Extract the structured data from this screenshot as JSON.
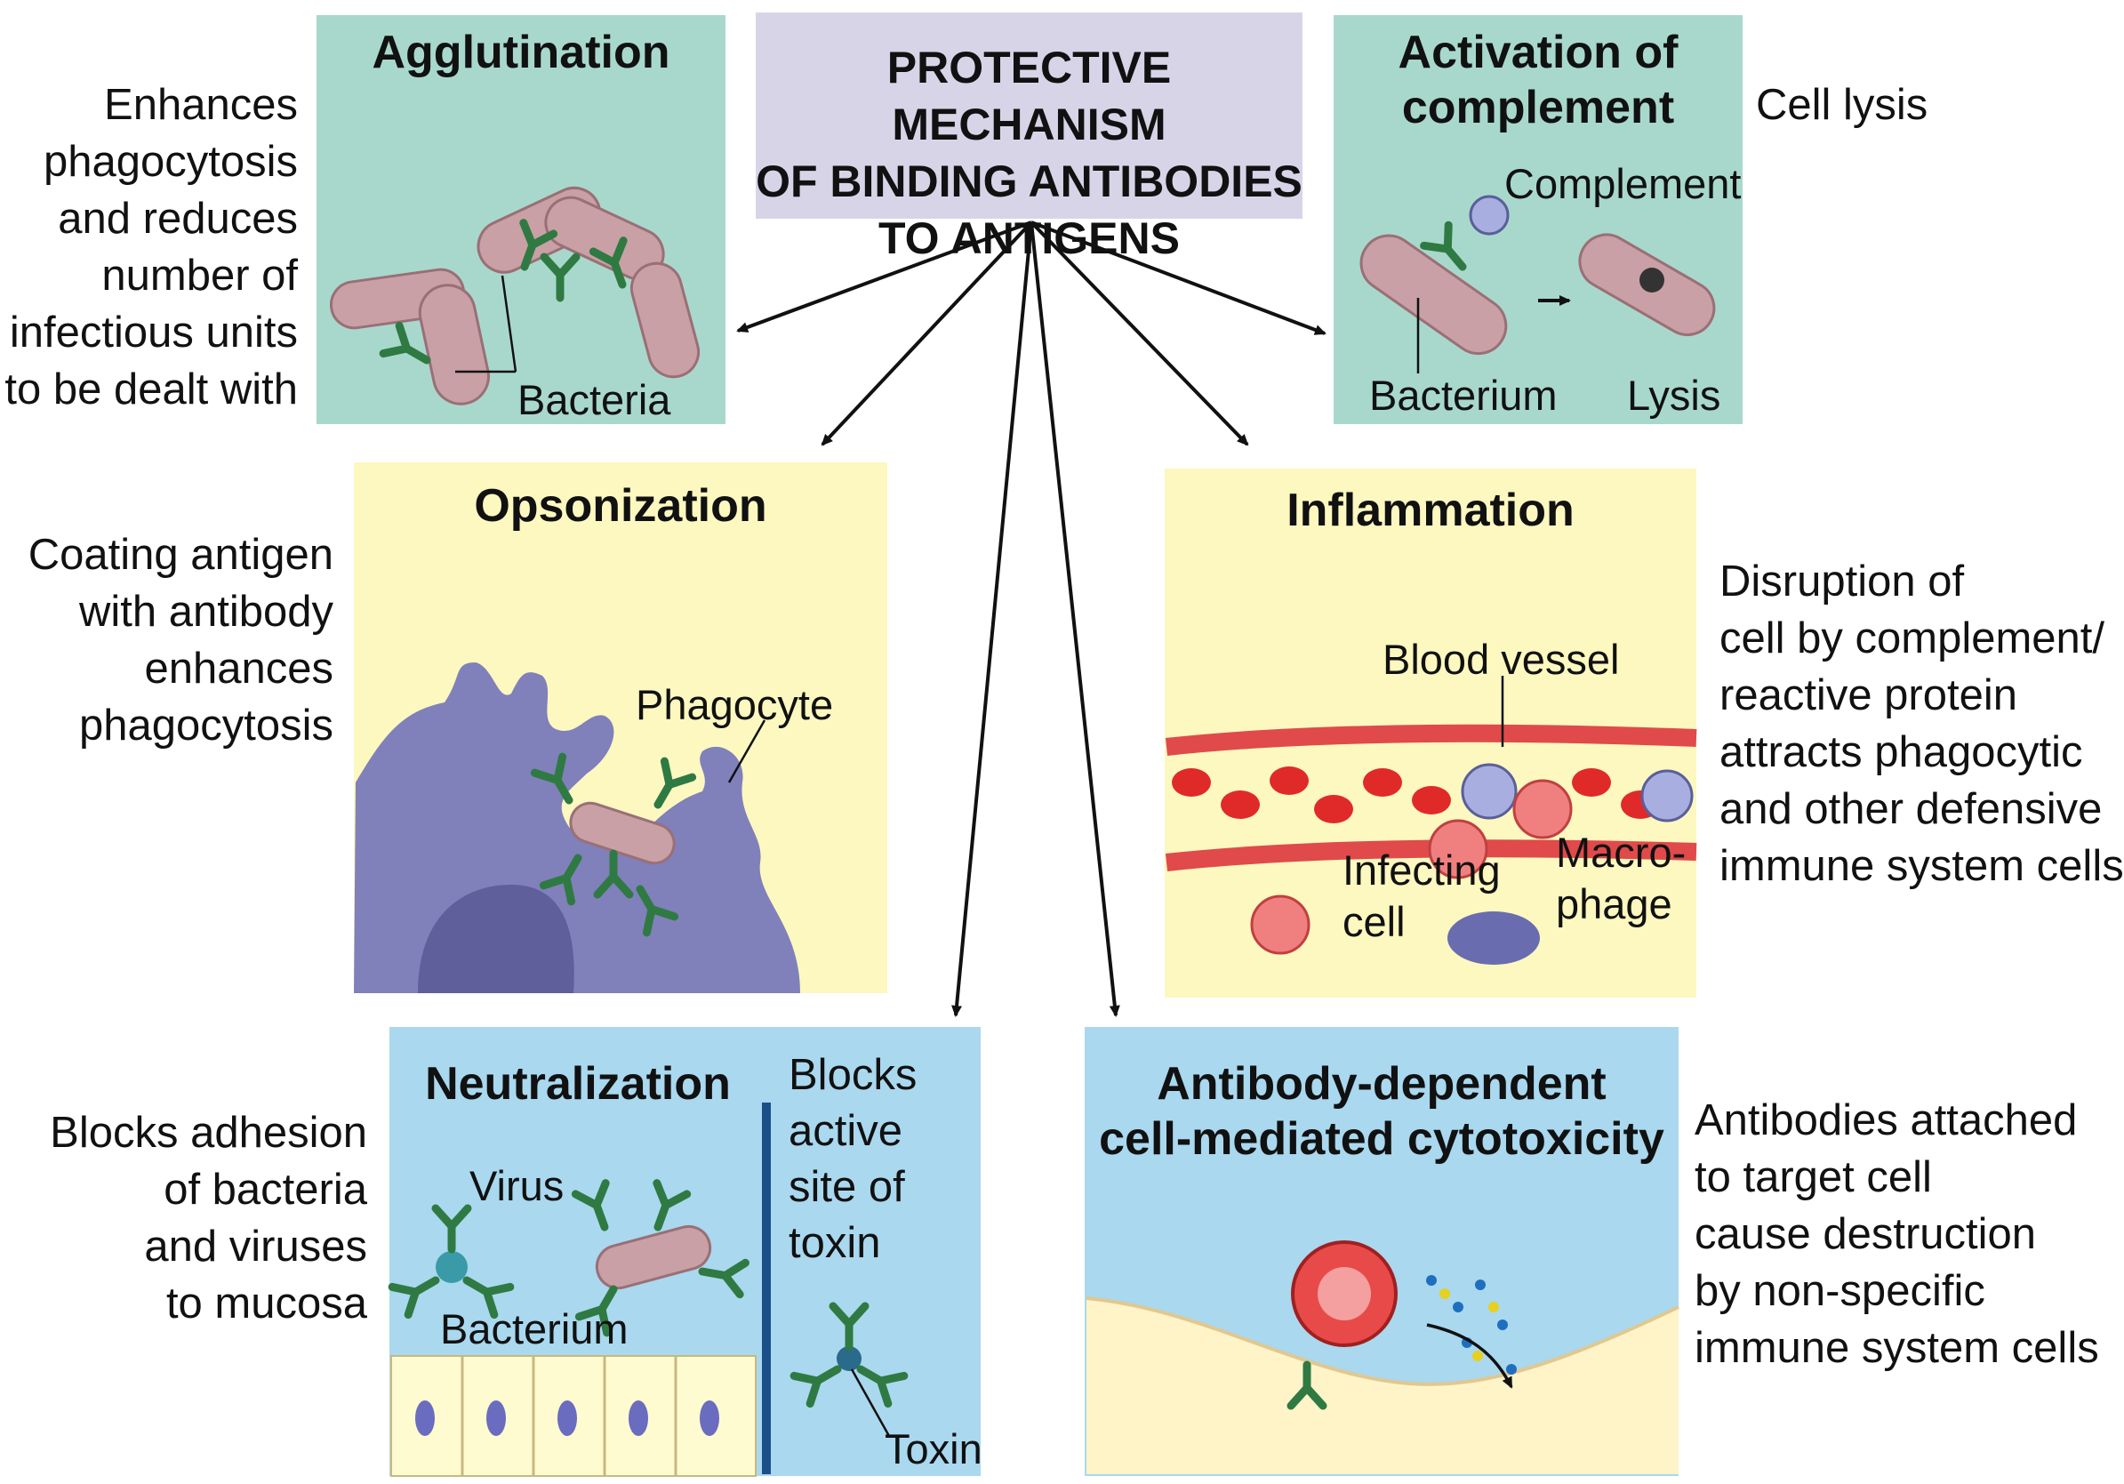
{
  "center": {
    "title": "PROTECTIVE MECHANISM\nOF BINDING ANTIBODIES\nTO ANTIGENS"
  },
  "agglutination": {
    "title": "Agglutination",
    "description": "Enhances\nphagocytosis\nand reduces\nnumber of\ninfectious units\nto be dealt with",
    "label_bacteria": "Bacteria"
  },
  "complement": {
    "title": "Activation of\ncomplement",
    "description": "Cell lysis",
    "label_complement": "Complement",
    "label_bacterium": "Bacterium",
    "label_lysis": "Lysis"
  },
  "opsonization": {
    "title": "Opsonization",
    "description": "Coating antigen\nwith antibody\nenhances\nphagocytosis",
    "label_phagocyte": "Phagocyte"
  },
  "inflammation": {
    "title": "Inflammation",
    "description": "Disruption of\ncell by complement/\nreactive protein\nattracts phagocytic\nand other defensive\nimmune system cells",
    "label_blood_vessel": "Blood vessel",
    "label_infecting": "Infecting",
    "label_cell": "cell",
    "label_macro": "Macro-",
    "label_phage": "phage"
  },
  "neutralization": {
    "title": "Neutralization",
    "description": "Blocks adhesion\nof bacteria\nand viruses\nto mucosa",
    "side_text": "Blocks\nactive\nsite of\ntoxin",
    "label_virus": "Virus",
    "label_bacterium": "Bacterium",
    "label_toxin": "Toxin"
  },
  "adcc": {
    "title": "Antibody-dependent\ncell-mediated cytotoxicity",
    "description": "Antibodies attached\nto target cell\ncause destruction\nby non-specific\nimmune system cells"
  },
  "colors": {
    "teal_panel": "#a8d8cc",
    "yellow_panel": "#fcf8c0",
    "blue_panel": "#a9d8ef",
    "center_box": "#d8d4e8",
    "antibody": "#2f7a42",
    "bacterium": "#c9a0a6",
    "phagocyte": "#8080bb",
    "rbc": "#e02a2a"
  }
}
